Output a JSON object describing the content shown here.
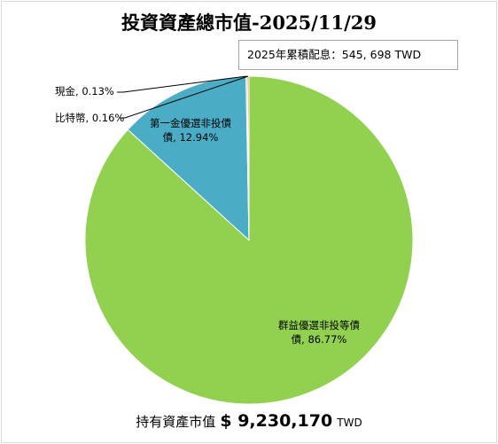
{
  "chart_data": {
    "type": "pie",
    "title": "投資資產總市值-2025/11/29",
    "annotation": "2025年累積配息：545, 698 TWD",
    "slices": [
      {
        "label": "群益優選非投等債",
        "pct_text": "86.77%",
        "value": 86.77,
        "color": "#92d050"
      },
      {
        "label": "第一金優選非投債",
        "pct_text": "12.94%",
        "value": 12.94,
        "color": "#4bacc6"
      },
      {
        "label": "現金",
        "pct_text": "0.13%",
        "value": 0.13,
        "color": "#a5a5a5"
      },
      {
        "label": "比特幣",
        "pct_text": "0.16%",
        "value": 0.16,
        "color": "#f79646"
      }
    ],
    "footer": {
      "label": "持有資產市值",
      "value": "$ 9,230,170",
      "unit": "TWD"
    }
  }
}
